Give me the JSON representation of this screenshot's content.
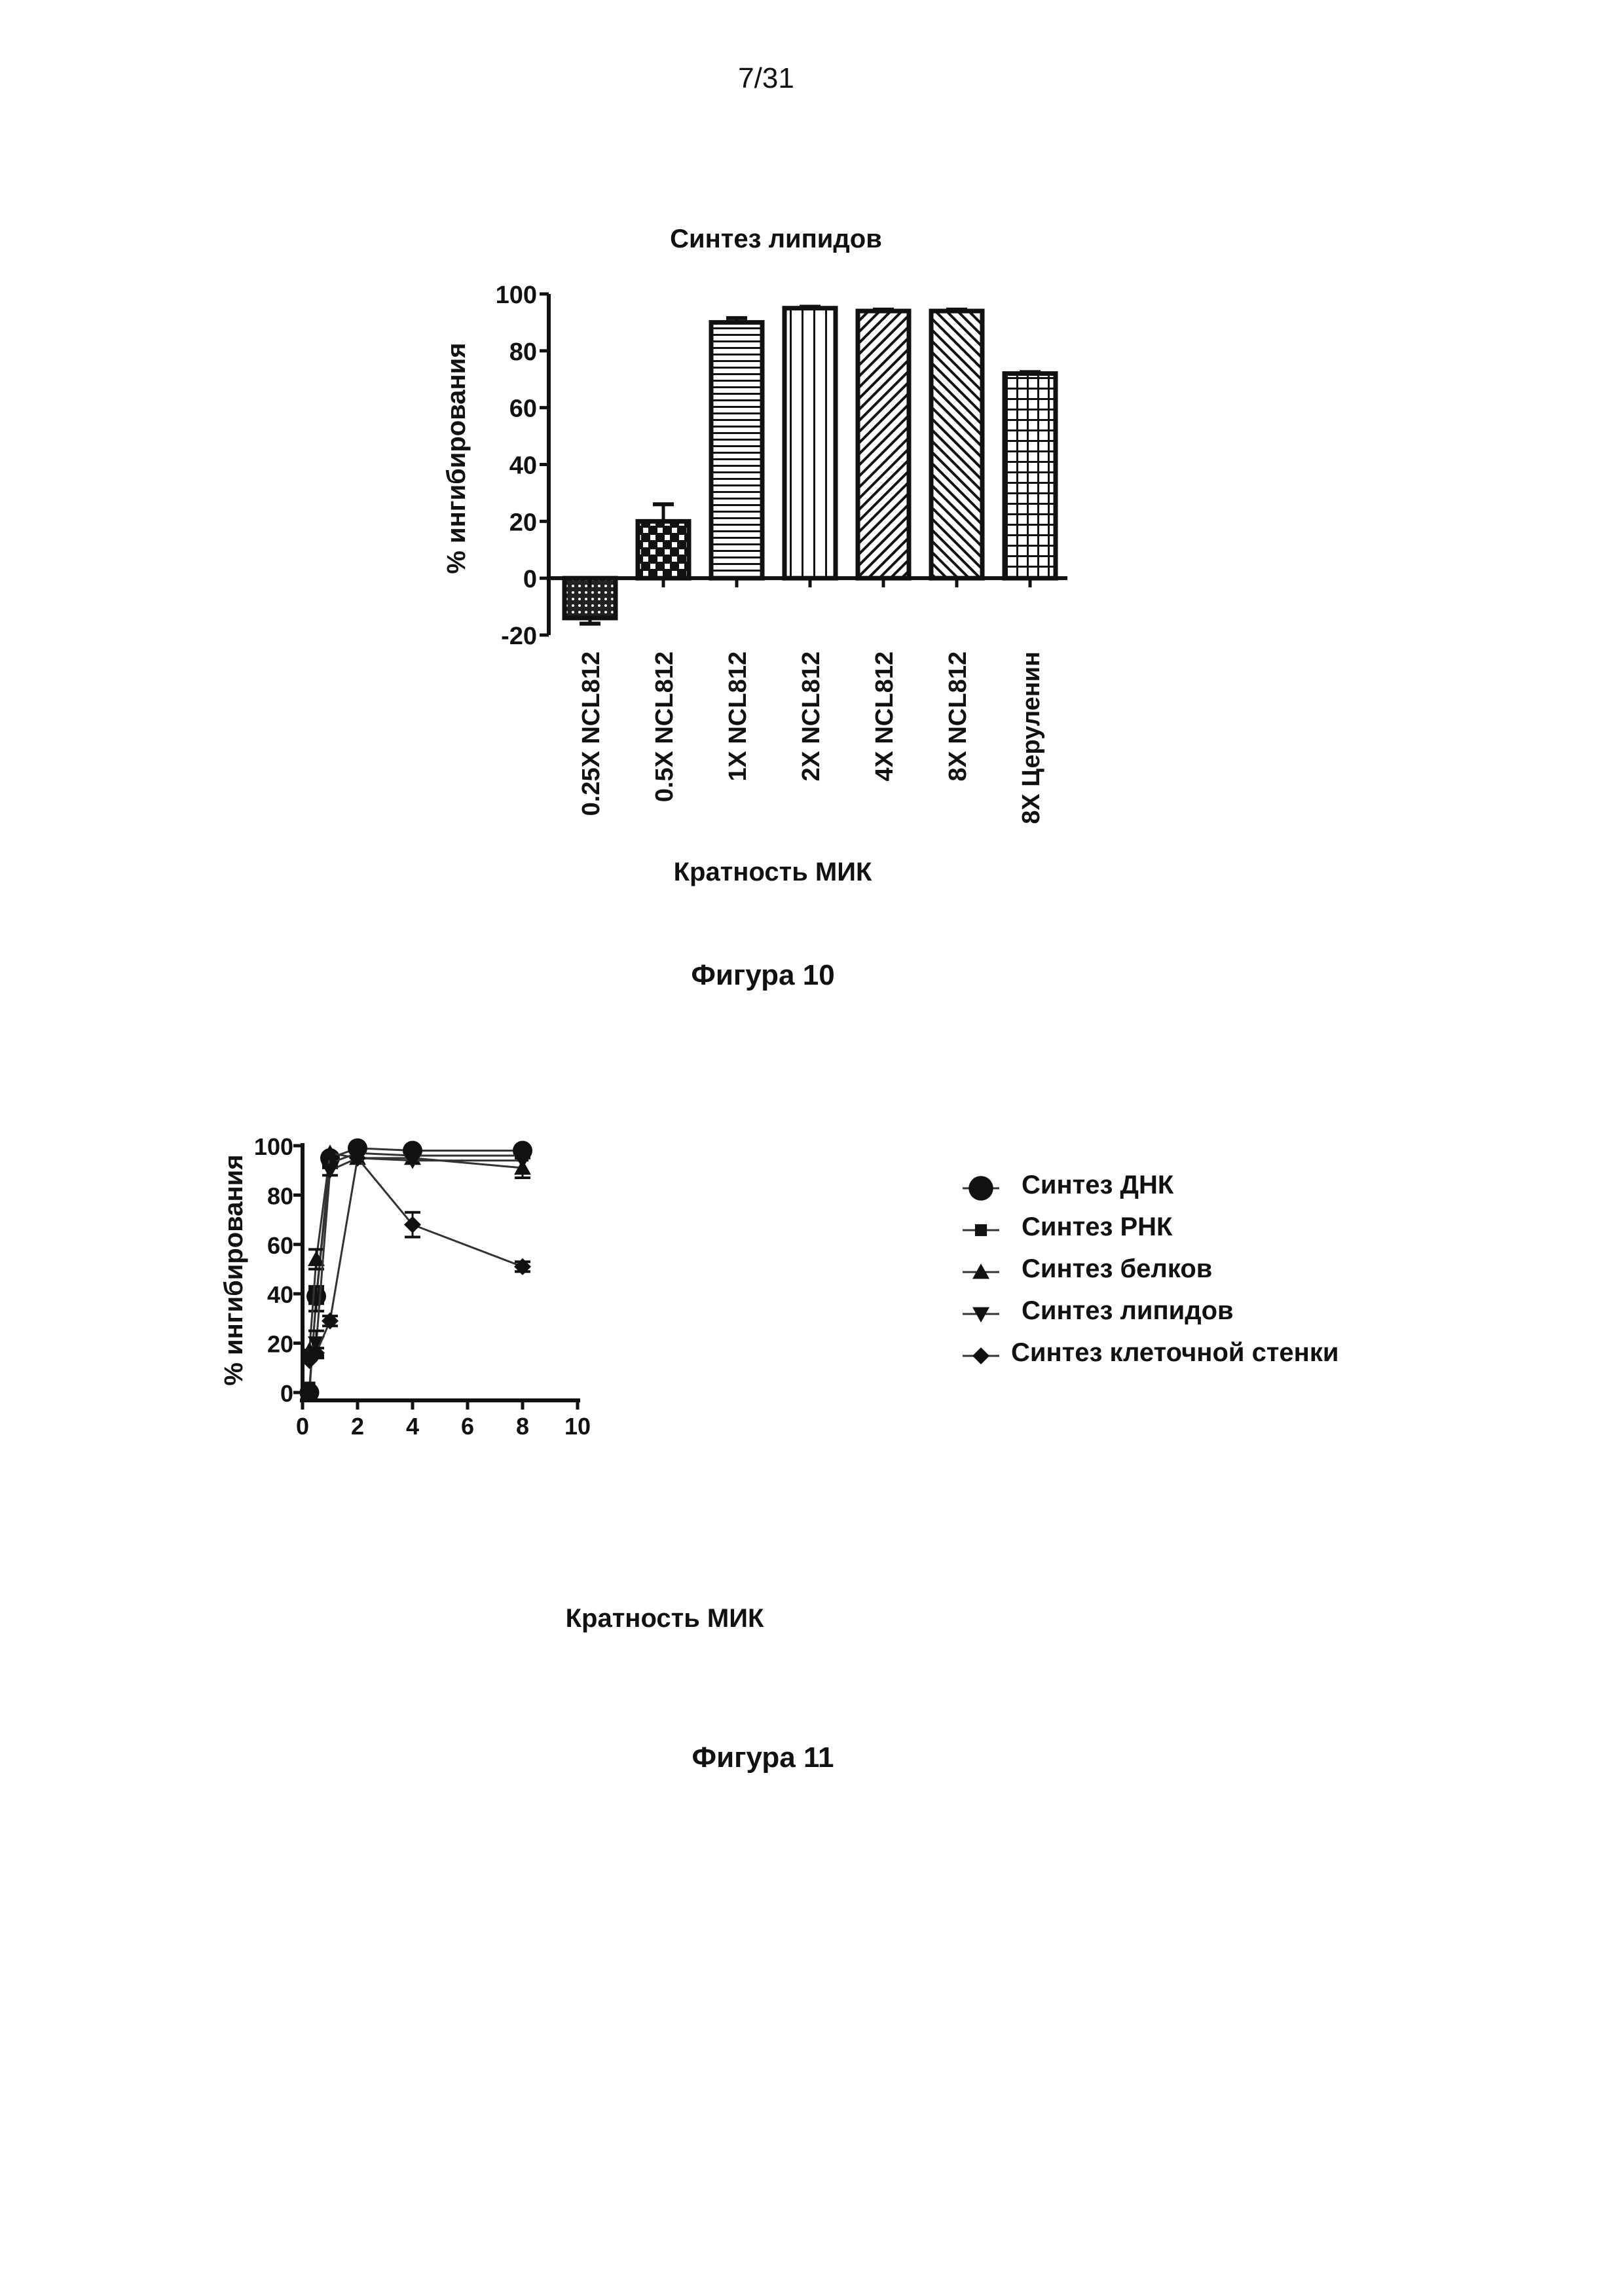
{
  "page_number": "7/31",
  "figures": [
    {
      "caption": "Фигура 10"
    },
    {
      "caption": "Фигура 11"
    }
  ],
  "chart_data": [
    {
      "type": "bar",
      "title": "Синтез липидов",
      "xlabel": "Кратность МИК",
      "ylabel": "% ингибирования",
      "ylim": [
        -20,
        100
      ],
      "yticks": [
        "-20",
        "0",
        "20",
        "40",
        "60",
        "80",
        "100"
      ],
      "ytick_values": [
        -20,
        0,
        20,
        40,
        60,
        80,
        100
      ],
      "categories": [
        "0.25X NCL812",
        "0.5X NCL812",
        "1X NCL812",
        "2X NCL812",
        "4X NCL812",
        "8X NCL812",
        "8X Церуленин"
      ],
      "values": [
        -14,
        20,
        90,
        95,
        94,
        94,
        72
      ],
      "errors": [
        2,
        6,
        1.5,
        0.5,
        0.5,
        0.5,
        0.5
      ],
      "patterns": [
        "dots-dense",
        "dots",
        "horizontal",
        "vertical",
        "diag-right",
        "diag-left",
        "grid"
      ],
      "grid": false
    },
    {
      "type": "line",
      "xlabel": "Кратность МИК",
      "ylabel": "% ингибирования",
      "xlim": [
        0,
        10
      ],
      "ylim": [
        0,
        100
      ],
      "xticks": [
        "0",
        "2",
        "4",
        "6",
        "8",
        "10"
      ],
      "xtick_values": [
        0,
        2,
        4,
        6,
        8,
        10
      ],
      "yticks": [
        "0",
        "20",
        "40",
        "60",
        "80",
        "100"
      ],
      "ytick_values": [
        0,
        20,
        40,
        60,
        80,
        100
      ],
      "x": [
        0.25,
        0.5,
        1,
        2,
        4,
        8
      ],
      "legend_position": "right",
      "grid": false,
      "series": [
        {
          "name": "Синтез ДНК",
          "marker": "circle",
          "values": [
            0,
            39,
            95,
            99,
            98,
            98
          ],
          "errors": [
            1,
            3,
            2,
            1,
            1,
            1
          ]
        },
        {
          "name": "Синтез РНК",
          "marker": "square",
          "values": [
            2,
            38,
            93,
            97,
            96,
            96
          ],
          "errors": [
            1,
            5,
            2,
            1,
            1,
            1
          ]
        },
        {
          "name": "Синтез белков",
          "marker": "triangle-up",
          "values": [
            17,
            54,
            97,
            95,
            95,
            91
          ],
          "errors": [
            1,
            4,
            1,
            1,
            1,
            4
          ]
        },
        {
          "name": "Синтез липидов",
          "marker": "triangle-down",
          "values": [
            15,
            20,
            90,
            95,
            94,
            94
          ],
          "errors": [
            1,
            5,
            2,
            1,
            1,
            1
          ]
        },
        {
          "name": "Синтез клеточной стенки",
          "marker": "diamond",
          "values": [
            13,
            16,
            29,
            95,
            68,
            51
          ],
          "errors": [
            1,
            2,
            2,
            1,
            5,
            2
          ]
        }
      ]
    }
  ]
}
